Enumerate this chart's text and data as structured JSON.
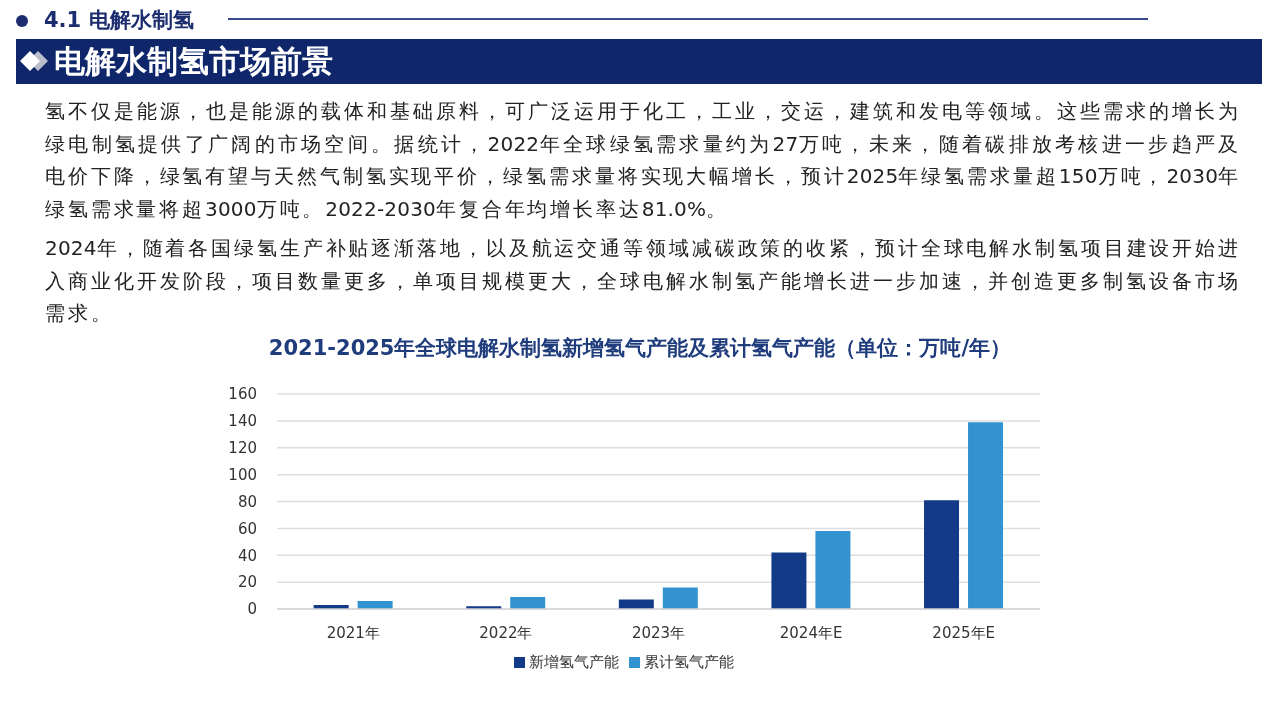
{
  "chart_data": {
    "type": "bar",
    "title": "2021-2025年全球电解水制氢新增氢气产能及累计氢气产能（单位：万吨/年）",
    "annotations": [
      "4.1 电解水制氢",
      "电解水制氢市场前景",
      "氢不仅是能源，也是能源的载体和基础原料，可广泛运用于化工，工业，交运，建筑和发电等领域。这些需求的增长为绿电制氢提供了广阔的市场空间。据统计，2022年全球绿氢需求量约为27万吨，未来，随着碳排放考核进一步趋严及电价下降，绿氢有望与天然气制氢实现平价，绿氢需求量将实现大幅增长，预计2025年绿氢需求量超150万吨，2030年绿氢需求量将超3000万吨。2022-2030年复合年均增长率达81.0%。",
      "2024年，随着各国绿氢生产补贴逐渐落地，以及航运交通等领域减碳政策的收紧，预计全球电解水制氢项目建设开始进入商业化开发阶段，项目数量更多，单项目规模更大，全球电解水制氢产能增长进一步加速，并创造更多制氢设备市场需求。"
    ],
    "categories": [
      "2021年",
      "2022年",
      "2023年",
      "2024年E",
      "2025年E"
    ],
    "series": [
      {
        "name": "新增氢气产能",
        "color": "#133a86",
        "values": [
          3,
          2,
          7,
          42,
          81
        ]
      },
      {
        "name": "累计氢气产能",
        "color": "#3393d1",
        "values": [
          6,
          9,
          16,
          58,
          139
        ]
      }
    ],
    "ylim": [
      0,
      160
    ],
    "yticks": [
      0,
      20,
      40,
      60,
      80,
      100,
      120,
      140,
      160
    ],
    "grid": "y",
    "legend": "bottom"
  }
}
